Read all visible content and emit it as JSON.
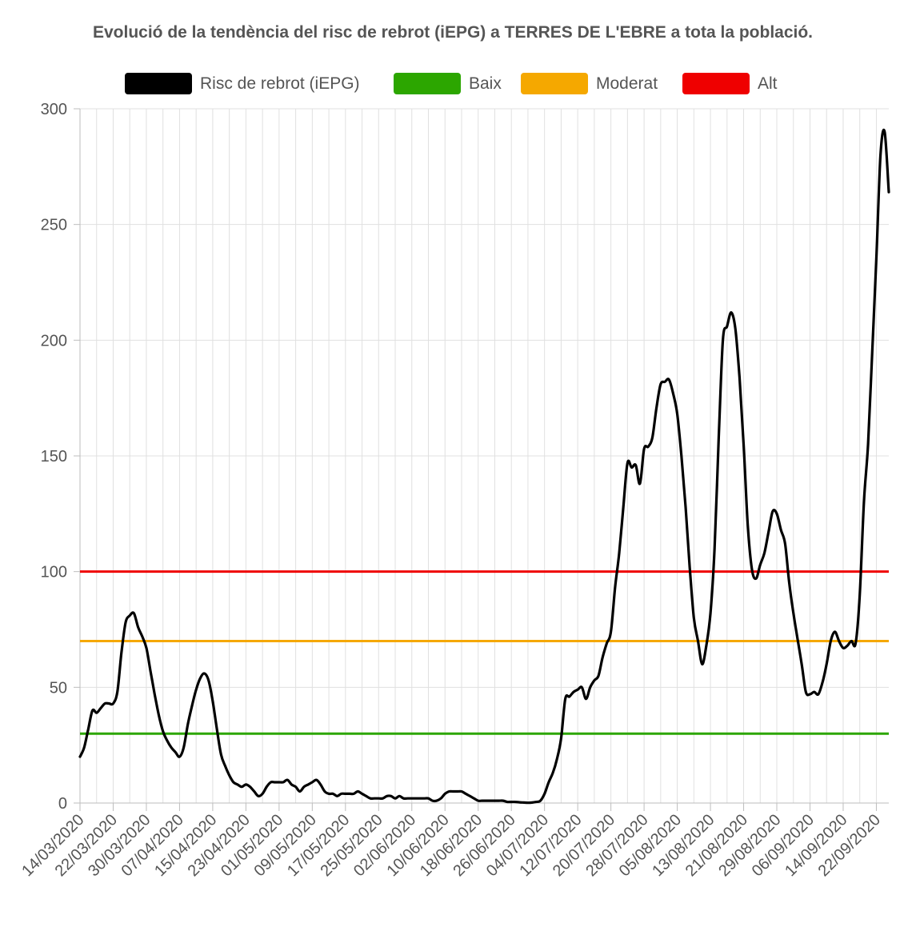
{
  "chart_data": {
    "type": "line",
    "title": "Evolució de la tendència del risc de rebrot (iEPG) a TERRES DE L'EBRE a tota la població.",
    "xlabel": "",
    "ylabel": "",
    "ylim": [
      0,
      300
    ],
    "yticks": [
      0,
      50,
      100,
      150,
      200,
      250,
      300
    ],
    "grid": true,
    "legend_position": "top",
    "x_tick_labels": [
      "14/03/2020",
      "22/03/2020",
      "30/03/2020",
      "07/04/2020",
      "15/04/2020",
      "23/04/2020",
      "01/05/2020",
      "09/05/2020",
      "17/05/2020",
      "25/05/2020",
      "02/06/2020",
      "10/06/2020",
      "18/06/2020",
      "26/06/2020",
      "04/07/2020",
      "12/07/2020",
      "20/07/2020",
      "28/07/2020",
      "05/08/2020",
      "13/08/2020",
      "21/08/2020",
      "29/08/2020",
      "06/09/2020",
      "14/09/2020",
      "22/09/2020"
    ],
    "x_start": "14/03/2020",
    "x_end": "25/09/2020",
    "series": [
      {
        "name": "Risc de rebrot (iEPG)",
        "color": "#000000",
        "points": [
          [
            "14/03/2020",
            20
          ],
          [
            "15/03/2020",
            24
          ],
          [
            "16/03/2020",
            32
          ],
          [
            "17/03/2020",
            40
          ],
          [
            "18/03/2020",
            39
          ],
          [
            "19/03/2020",
            41
          ],
          [
            "20/03/2020",
            43
          ],
          [
            "21/03/2020",
            43
          ],
          [
            "22/03/2020",
            43
          ],
          [
            "23/03/2020",
            48
          ],
          [
            "24/03/2020",
            65
          ],
          [
            "25/03/2020",
            78
          ],
          [
            "26/03/2020",
            81
          ],
          [
            "27/03/2020",
            82
          ],
          [
            "28/03/2020",
            76
          ],
          [
            "29/03/2020",
            72
          ],
          [
            "30/03/2020",
            67
          ],
          [
            "31/03/2020",
            57
          ],
          [
            "01/04/2020",
            47
          ],
          [
            "02/04/2020",
            38
          ],
          [
            "03/04/2020",
            31
          ],
          [
            "04/04/2020",
            27
          ],
          [
            "05/04/2020",
            24
          ],
          [
            "06/04/2020",
            22
          ],
          [
            "07/04/2020",
            20
          ],
          [
            "08/04/2020",
            24
          ],
          [
            "09/04/2020",
            34
          ],
          [
            "10/04/2020",
            42
          ],
          [
            "11/04/2020",
            49
          ],
          [
            "12/04/2020",
            54
          ],
          [
            "13/04/2020",
            56
          ],
          [
            "14/04/2020",
            53
          ],
          [
            "15/04/2020",
            44
          ],
          [
            "16/04/2020",
            32
          ],
          [
            "17/04/2020",
            21
          ],
          [
            "18/04/2020",
            16
          ],
          [
            "19/04/2020",
            12
          ],
          [
            "20/04/2020",
            9
          ],
          [
            "21/04/2020",
            8
          ],
          [
            "22/04/2020",
            7
          ],
          [
            "23/04/2020",
            8
          ],
          [
            "24/04/2020",
            7
          ],
          [
            "25/04/2020",
            5
          ],
          [
            "26/04/2020",
            3
          ],
          [
            "27/04/2020",
            4
          ],
          [
            "28/04/2020",
            7
          ],
          [
            "29/04/2020",
            9
          ],
          [
            "30/04/2020",
            9
          ],
          [
            "01/05/2020",
            9
          ],
          [
            "02/05/2020",
            9
          ],
          [
            "03/05/2020",
            10
          ],
          [
            "04/05/2020",
            8
          ],
          [
            "05/05/2020",
            7
          ],
          [
            "06/05/2020",
            5
          ],
          [
            "07/05/2020",
            7
          ],
          [
            "08/05/2020",
            8
          ],
          [
            "09/05/2020",
            9
          ],
          [
            "10/05/2020",
            10
          ],
          [
            "11/05/2020",
            8
          ],
          [
            "12/05/2020",
            5
          ],
          [
            "13/05/2020",
            4
          ],
          [
            "14/05/2020",
            4
          ],
          [
            "15/05/2020",
            3
          ],
          [
            "16/05/2020",
            4
          ],
          [
            "17/05/2020",
            4
          ],
          [
            "18/05/2020",
            4
          ],
          [
            "19/05/2020",
            4
          ],
          [
            "20/05/2020",
            5
          ],
          [
            "21/05/2020",
            4
          ],
          [
            "22/05/2020",
            3
          ],
          [
            "23/05/2020",
            2
          ],
          [
            "24/05/2020",
            2
          ],
          [
            "25/05/2020",
            2
          ],
          [
            "26/05/2020",
            2
          ],
          [
            "27/05/2020",
            3
          ],
          [
            "28/05/2020",
            3
          ],
          [
            "29/05/2020",
            2
          ],
          [
            "30/05/2020",
            3
          ],
          [
            "31/05/2020",
            2
          ],
          [
            "01/06/2020",
            2
          ],
          [
            "02/06/2020",
            2
          ],
          [
            "03/06/2020",
            2
          ],
          [
            "04/06/2020",
            2
          ],
          [
            "05/06/2020",
            2
          ],
          [
            "06/06/2020",
            2
          ],
          [
            "07/06/2020",
            1
          ],
          [
            "08/06/2020",
            1
          ],
          [
            "09/06/2020",
            2
          ],
          [
            "10/06/2020",
            4
          ],
          [
            "11/06/2020",
            5
          ],
          [
            "12/06/2020",
            5
          ],
          [
            "13/06/2020",
            5
          ],
          [
            "14/06/2020",
            5
          ],
          [
            "15/06/2020",
            4
          ],
          [
            "16/06/2020",
            3
          ],
          [
            "17/06/2020",
            2
          ],
          [
            "18/06/2020",
            1
          ],
          [
            "19/06/2020",
            1
          ],
          [
            "20/06/2020",
            1
          ],
          [
            "21/06/2020",
            1
          ],
          [
            "22/06/2020",
            1
          ],
          [
            "23/06/2020",
            1
          ],
          [
            "24/06/2020",
            1
          ],
          [
            "25/06/2020",
            0.5
          ],
          [
            "26/06/2020",
            0.5
          ],
          [
            "27/06/2020",
            0.5
          ],
          [
            "28/06/2020",
            0.3
          ],
          [
            "29/06/2020",
            0.2
          ],
          [
            "30/06/2020",
            0.1
          ],
          [
            "01/07/2020",
            0.2
          ],
          [
            "02/07/2020",
            0.5
          ],
          [
            "03/07/2020",
            1
          ],
          [
            "04/07/2020",
            4
          ],
          [
            "05/07/2020",
            9
          ],
          [
            "06/07/2020",
            13
          ],
          [
            "07/07/2020",
            19
          ],
          [
            "08/07/2020",
            28
          ],
          [
            "09/07/2020",
            45
          ],
          [
            "10/07/2020",
            46
          ],
          [
            "11/07/2020",
            48
          ],
          [
            "12/07/2020",
            49
          ],
          [
            "13/07/2020",
            50
          ],
          [
            "14/07/2020",
            45
          ],
          [
            "15/07/2020",
            50
          ],
          [
            "16/07/2020",
            53
          ],
          [
            "17/07/2020",
            55
          ],
          [
            "18/07/2020",
            63
          ],
          [
            "19/07/2020",
            69
          ],
          [
            "20/07/2020",
            74
          ],
          [
            "21/07/2020",
            93
          ],
          [
            "22/07/2020",
            108
          ],
          [
            "23/07/2020",
            128
          ],
          [
            "24/07/2020",
            147
          ],
          [
            "25/07/2020",
            145
          ],
          [
            "26/07/2020",
            146
          ],
          [
            "27/07/2020",
            138
          ],
          [
            "28/07/2020",
            153
          ],
          [
            "29/07/2020",
            154
          ],
          [
            "30/07/2020",
            158
          ],
          [
            "31/07/2020",
            171
          ],
          [
            "01/08/2020",
            181
          ],
          [
            "02/08/2020",
            182
          ],
          [
            "03/08/2020",
            183
          ],
          [
            "04/08/2020",
            177
          ],
          [
            "05/08/2020",
            168
          ],
          [
            "06/08/2020",
            150
          ],
          [
            "07/08/2020",
            128
          ],
          [
            "08/08/2020",
            102
          ],
          [
            "09/08/2020",
            80
          ],
          [
            "10/08/2020",
            70
          ],
          [
            "11/08/2020",
            60
          ],
          [
            "12/08/2020",
            68
          ],
          [
            "13/08/2020",
            82
          ],
          [
            "14/08/2020",
            110
          ],
          [
            "15/08/2020",
            158
          ],
          [
            "16/08/2020",
            200
          ],
          [
            "17/08/2020",
            206
          ],
          [
            "18/08/2020",
            212
          ],
          [
            "19/08/2020",
            205
          ],
          [
            "20/08/2020",
            184
          ],
          [
            "21/08/2020",
            155
          ],
          [
            "22/08/2020",
            120
          ],
          [
            "23/08/2020",
            101
          ],
          [
            "24/08/2020",
            97
          ],
          [
            "25/08/2020",
            103
          ],
          [
            "26/08/2020",
            108
          ],
          [
            "27/08/2020",
            117
          ],
          [
            "28/08/2020",
            126
          ],
          [
            "29/08/2020",
            125
          ],
          [
            "30/08/2020",
            118
          ],
          [
            "31/08/2020",
            112
          ],
          [
            "01/09/2020",
            95
          ],
          [
            "02/09/2020",
            82
          ],
          [
            "03/09/2020",
            71
          ],
          [
            "04/09/2020",
            60
          ],
          [
            "05/09/2020",
            48
          ],
          [
            "06/09/2020",
            47
          ],
          [
            "07/09/2020",
            48
          ],
          [
            "08/09/2020",
            47
          ],
          [
            "09/09/2020",
            52
          ],
          [
            "10/09/2020",
            60
          ],
          [
            "11/09/2020",
            70
          ],
          [
            "12/09/2020",
            74
          ],
          [
            "13/09/2020",
            70
          ],
          [
            "14/09/2020",
            67
          ],
          [
            "15/09/2020",
            68
          ],
          [
            "16/09/2020",
            70
          ],
          [
            "17/09/2020",
            69
          ],
          [
            "18/09/2020",
            90
          ],
          [
            "19/09/2020",
            130
          ],
          [
            "20/09/2020",
            155
          ],
          [
            "21/09/2020",
            195
          ],
          [
            "22/09/2020",
            235
          ],
          [
            "23/09/2020",
            280
          ],
          [
            "24/09/2020",
            290
          ],
          [
            "25/09/2020",
            264
          ]
        ]
      },
      {
        "name": "Baix",
        "color": "#2ca600",
        "constant": 30
      },
      {
        "name": "Moderat",
        "color": "#f5a800",
        "constant": 70
      },
      {
        "name": "Alt",
        "color": "#ef0000",
        "constant": 100
      }
    ]
  }
}
